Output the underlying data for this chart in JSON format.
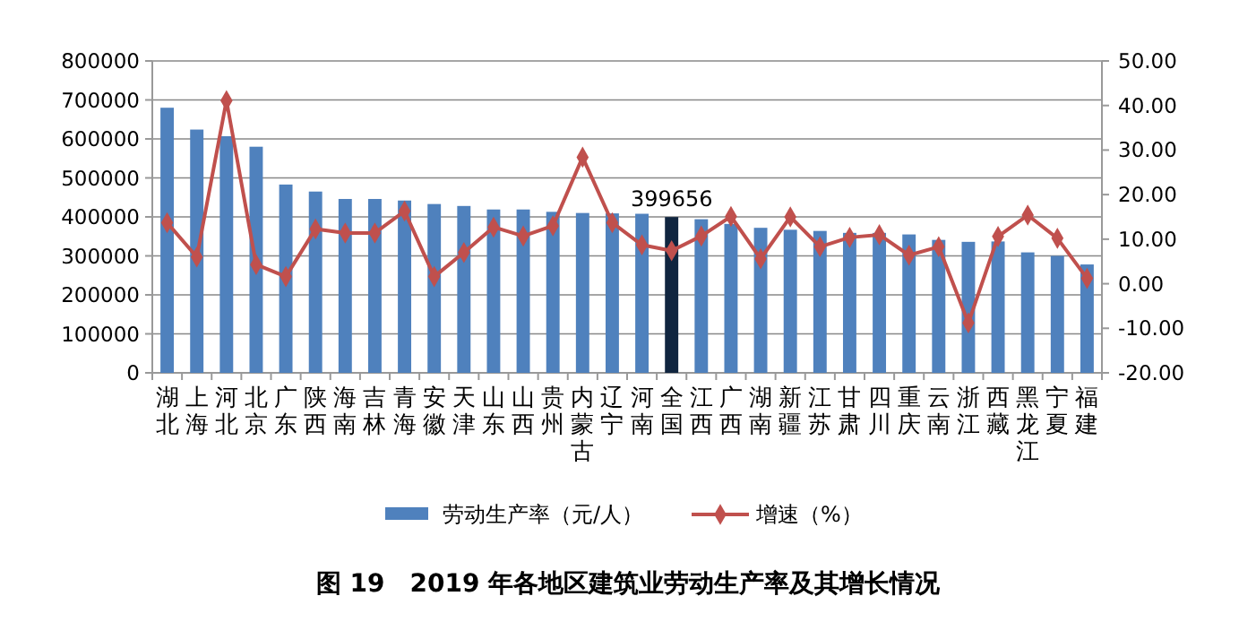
{
  "chart_data": {
    "type": "bar",
    "title": "图 19　2019 年各地区建筑业劳动生产率及其增长情况",
    "categories": [
      "湖北",
      "上海",
      "河北",
      "北京",
      "广东",
      "陕西",
      "海南",
      "吉林",
      "青海",
      "安徽",
      "天津",
      "山东",
      "山西",
      "贵州",
      "内蒙古",
      "辽宁",
      "河南",
      "全国",
      "江西",
      "广西",
      "湖南",
      "新疆",
      "江苏",
      "甘肃",
      "四川",
      "重庆",
      "云南",
      "浙江",
      "西藏",
      "黑龙江",
      "宁夏",
      "福建"
    ],
    "series": [
      {
        "name": "劳动生产率（元/人）",
        "color": "#4f81bd",
        "colors": [
          "#4f81bd",
          "#4f81bd",
          "#4f81bd",
          "#4f81bd",
          "#4f81bd",
          "#4f81bd",
          "#4f81bd",
          "#4f81bd",
          "#4f81bd",
          "#4f81bd",
          "#4f81bd",
          "#4f81bd",
          "#4f81bd",
          "#4f81bd",
          "#4f81bd",
          "#4f81bd",
          "#4f81bd",
          "#10253f",
          "#4f81bd",
          "#4f81bd",
          "#4f81bd",
          "#4f81bd",
          "#4f81bd",
          "#4f81bd",
          "#4f81bd",
          "#4f81bd",
          "#4f81bd",
          "#4f81bd",
          "#4f81bd",
          "#4f81bd",
          "#4f81bd",
          "#4f81bd"
        ],
        "values": [
          680000,
          624000,
          607000,
          580000,
          483000,
          465000,
          446000,
          446000,
          442000,
          433000,
          428000,
          419000,
          419000,
          413000,
          410000,
          409000,
          408000,
          399656,
          394000,
          382000,
          372000,
          367000,
          364000,
          359000,
          359000,
          355000,
          341000,
          336000,
          337000,
          309000,
          300000,
          278000
        ],
        "value_labels": [
          null,
          null,
          null,
          null,
          null,
          null,
          null,
          null,
          null,
          null,
          null,
          null,
          null,
          null,
          null,
          null,
          null,
          "399656",
          null,
          null,
          null,
          null,
          null,
          null,
          null,
          null,
          null,
          null,
          null,
          null,
          null,
          null
        ]
      },
      {
        "name": "增速（%）",
        "type": "line",
        "axis": "y2",
        "color": "#c0504d",
        "marker": "diamond",
        "values": [
          13.7,
          6.0,
          41.1,
          4.3,
          1.6,
          12.3,
          11.4,
          11.4,
          16.3,
          1.6,
          7.0,
          12.7,
          10.7,
          13.0,
          28.4,
          13.7,
          8.7,
          7.4,
          10.7,
          15.1,
          5.6,
          15.0,
          8.3,
          10.4,
          11.0,
          6.4,
          8.3,
          -8.8,
          10.6,
          15.4,
          10.2,
          1.2
        ]
      }
    ],
    "ylim": [
      0,
      800000
    ],
    "yticks": [
      0,
      100000,
      200000,
      300000,
      400000,
      500000,
      600000,
      700000,
      800000
    ],
    "y2lim": [
      -20,
      50
    ],
    "y2ticks": [
      {
        "value": -20,
        "label": "-20.00"
      },
      {
        "value": -10,
        "label": "-10.00"
      },
      {
        "value": 0,
        "label": "0.00"
      },
      {
        "value": 10,
        "label": "10.00"
      },
      {
        "value": 20,
        "label": "20.00"
      },
      {
        "value": 30,
        "label": "30.00"
      },
      {
        "value": 40,
        "label": "40.00"
      },
      {
        "value": 50,
        "label": "50.00"
      }
    ],
    "grid": "y",
    "legend": "bottom"
  }
}
